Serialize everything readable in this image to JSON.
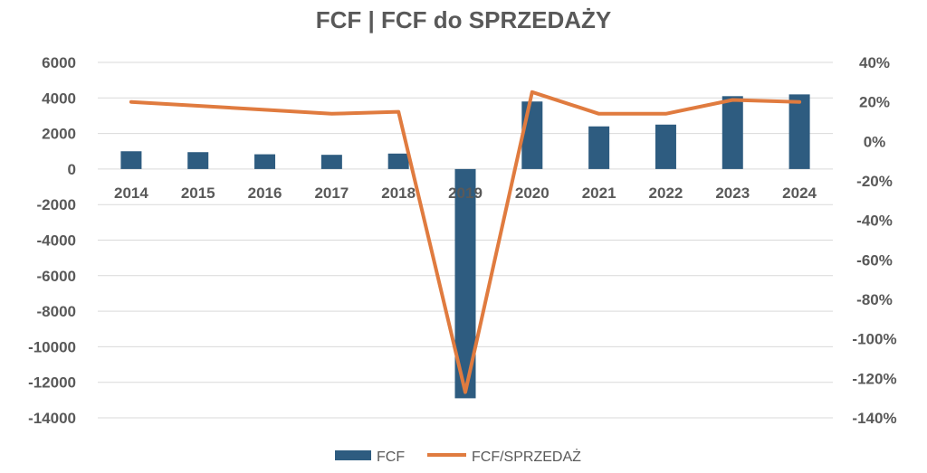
{
  "chart_data": {
    "type": "bar+line",
    "title": "FCF | FCF do SPRZEDAŻY",
    "categories": [
      "2014",
      "2015",
      "2016",
      "2017",
      "2018",
      "2019",
      "2020",
      "2021",
      "2022",
      "2023",
      "2024"
    ],
    "series": [
      {
        "name": "FCF",
        "type": "bar",
        "axis": "left",
        "color": "#2e5c80",
        "values": [
          1000,
          950,
          830,
          800,
          870,
          -12900,
          3800,
          2400,
          2500,
          4100,
          4200
        ]
      },
      {
        "name": "FCF/SPRZEDAŻ",
        "type": "line",
        "axis": "right",
        "color": "#e07b3f",
        "values": [
          0.2,
          0.18,
          0.16,
          0.14,
          0.15,
          -1.27,
          0.25,
          0.14,
          0.14,
          0.21,
          0.2
        ]
      }
    ],
    "y_left": {
      "min": -14000,
      "max": 6000,
      "step": 2000,
      "ticks": [
        "6000",
        "4000",
        "2000",
        "0",
        "-2000",
        "-4000",
        "-6000",
        "-8000",
        "-10000",
        "-12000",
        "-14000"
      ]
    },
    "y_right": {
      "min": -1.4,
      "max": 0.4,
      "step": 0.2,
      "ticks": [
        "40%",
        "20%",
        "0%",
        "-20%",
        "-40%",
        "-60%",
        "-80%",
        "-100%",
        "-120%",
        "-140%"
      ]
    },
    "grid": true,
    "legend_position": "bottom"
  }
}
